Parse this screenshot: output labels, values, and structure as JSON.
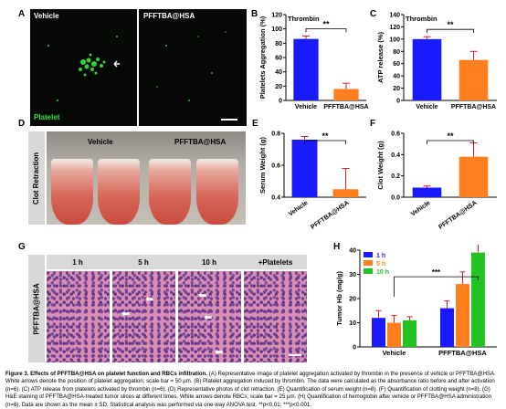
{
  "panels": {
    "a": {
      "letter": "A",
      "left_label": "Vehicle",
      "right_label": "PFFTBA@HSA",
      "marker_label": "Platelet"
    },
    "b": {
      "letter": "B"
    },
    "c": {
      "letter": "C"
    },
    "d": {
      "letter": "D",
      "side_label": "Clot Retraction",
      "col1": "Vehicle",
      "col2": "PFFTBA@HSA"
    },
    "e": {
      "letter": "E"
    },
    "f": {
      "letter": "F"
    },
    "g": {
      "letter": "G",
      "row_label": "PFFTBA@HSA",
      "columns": [
        "1 h",
        "5 h",
        "10 h",
        "+Platelets"
      ]
    },
    "h": {
      "letter": "H"
    }
  },
  "colors": {
    "blue": "#1a1aff",
    "orange": "#ff7f1f",
    "green": "#22c322",
    "red_error": "#e31a1a",
    "black": "#000000"
  },
  "caption": {
    "bold": "Figure 3. Effects of PFFTBA@HSA on platelet function and RBCs infiltration.",
    "text": " (A) Representative image of platelet aggregation activated by thrombin in the presence of vehicle or PFFTBA@HSA. White arrows denote the position of platelet aggregation; scale bar = 50 μm. (B) Platelet aggregation induced by thrombin. The data were calculated as the absorbance ratio before and after activation (n=6). (C) ATP release from platelets activated by thrombin (n=6). (D) Representative photos of clot retraction. (E) Quantification of serum weight (n=8). (F) Quantification of clotting weight (n=8). (G) H&E staining of PFFTBA@HSA-treated tumor slices at different times. White arrows denote RBCs; scale bar = 25 μm. (H) Quantification of hemoglobin after vehicle or PFFTBA@HSA administration (n=6). Data are shown as the mean ± SD. Statistical analysis was performed via one-way ANOVA test. **p<0.01; ***p<0.001."
  },
  "chart_data": [
    {
      "id": "B",
      "type": "bar",
      "annotation": "Thrombin",
      "categories": [
        "Vehicle",
        "PFFTBA@HSA"
      ],
      "values": [
        86,
        16
      ],
      "errors": [
        4,
        8
      ],
      "ylabel": "Platelets Aggregation (%)",
      "ylim": [
        0,
        120
      ],
      "yticks": [
        "0",
        "20",
        "40",
        "60",
        "80",
        "100",
        "120"
      ],
      "colors": [
        "#1a1aff",
        "#ff7f1f"
      ],
      "significance": "**"
    },
    {
      "id": "C",
      "type": "bar",
      "annotation": "Thrombin",
      "categories": [
        "Vehicle",
        "PFFTBA@HSA"
      ],
      "values": [
        100,
        66
      ],
      "errors": [
        4,
        14
      ],
      "ylabel": "ATP release (%)",
      "ylim": [
        0,
        140
      ],
      "yticks": [
        "0",
        "20",
        "40",
        "60",
        "80",
        "100",
        "120",
        "140"
      ],
      "colors": [
        "#1a1aff",
        "#ff7f1f"
      ],
      "significance": "**"
    },
    {
      "id": "E",
      "type": "bar",
      "categories": [
        "Vehicle",
        "PFFTBA@HSA"
      ],
      "values": [
        0.76,
        0.45
      ],
      "errors": [
        0.02,
        0.13
      ],
      "ylabel": "Serum Weight (g)",
      "ylim": [
        0.4,
        0.8
      ],
      "yticks": [
        "0.4",
        "0.6",
        "0.8"
      ],
      "colors": [
        "#1a1aff",
        "#ff7f1f"
      ],
      "significance": "**"
    },
    {
      "id": "F",
      "type": "bar",
      "categories": [
        "Vehicle",
        "PFFTBA@HSA"
      ],
      "values": [
        0.09,
        0.38
      ],
      "errors": [
        0.015,
        0.13
      ],
      "ylabel": "Clot Weight (g)",
      "ylim": [
        0.0,
        0.6
      ],
      "yticks": [
        "0.0",
        "0.2",
        "0.4",
        "0.6"
      ],
      "colors": [
        "#1a1aff",
        "#ff7f1f"
      ],
      "significance": "**"
    },
    {
      "id": "H",
      "type": "bar",
      "categories": [
        "Vehicle",
        "PFFTBA@HSA"
      ],
      "series": [
        {
          "name": "1 h",
          "values": [
            12,
            16
          ],
          "errors": [
            3,
            3
          ]
        },
        {
          "name": "5 h",
          "values": [
            10,
            26
          ],
          "errors": [
            3,
            5
          ]
        },
        {
          "name": "10 h",
          "values": [
            11,
            39
          ],
          "errors": [
            1.5,
            6
          ]
        }
      ],
      "ylabel": "Tumor Hb (mg/g)",
      "ylim": [
        0,
        40
      ],
      "yticks": [
        "0",
        "10",
        "20",
        "30",
        "40"
      ],
      "colors": [
        "#1a1aff",
        "#ff7f1f",
        "#22c322"
      ],
      "significance": "***",
      "legend": "top-left"
    }
  ]
}
